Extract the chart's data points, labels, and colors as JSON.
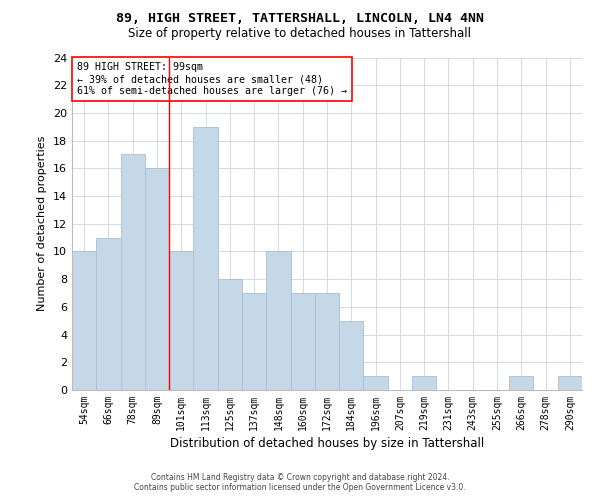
{
  "title": "89, HIGH STREET, TATTERSHALL, LINCOLN, LN4 4NN",
  "subtitle": "Size of property relative to detached houses in Tattershall",
  "xlabel": "Distribution of detached houses by size in Tattershall",
  "ylabel": "Number of detached properties",
  "categories": [
    "54sqm",
    "66sqm",
    "78sqm",
    "89sqm",
    "101sqm",
    "113sqm",
    "125sqm",
    "137sqm",
    "148sqm",
    "160sqm",
    "172sqm",
    "184sqm",
    "196sqm",
    "207sqm",
    "219sqm",
    "231sqm",
    "243sqm",
    "255sqm",
    "266sqm",
    "278sqm",
    "290sqm"
  ],
  "values": [
    10,
    11,
    17,
    16,
    10,
    19,
    8,
    7,
    10,
    7,
    7,
    5,
    1,
    0,
    1,
    0,
    0,
    0,
    1,
    0,
    1
  ],
  "bar_color": "#c5d8e8",
  "bar_edge_color": "#a8c0d4",
  "ylim": [
    0,
    24
  ],
  "yticks": [
    0,
    2,
    4,
    6,
    8,
    10,
    12,
    14,
    16,
    18,
    20,
    22,
    24
  ],
  "property_label": "89 HIGH STREET: 99sqm",
  "annotation_line1": "← 39% of detached houses are smaller (48)",
  "annotation_line2": "61% of semi-detached houses are larger (76) →",
  "vline_x_index": 3.5,
  "footer_line1": "Contains HM Land Registry data © Crown copyright and database right 2024.",
  "footer_line2": "Contains public sector information licensed under the Open Government Licence v3.0.",
  "background_color": "#ffffff",
  "grid_color": "#c8d4e0"
}
